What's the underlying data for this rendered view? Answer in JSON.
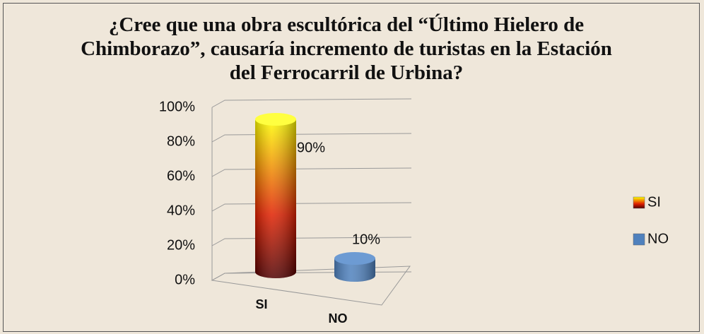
{
  "chart_data": {
    "type": "bar3d",
    "title": "¿Cree que una obra escultórica del “Último Hielero de Chimborazo”, causaría incremento de turistas en la Estación del Ferrocarril de Urbina?",
    "categories": [
      "SI",
      "NO"
    ],
    "values": [
      90,
      10
    ],
    "value_labels": [
      "90%",
      "10%"
    ],
    "colors": [
      "#e02000",
      "#4f81bd"
    ],
    "ylim": [
      0,
      100
    ],
    "yticks": [
      {
        "value": 0,
        "label": "0%"
      },
      {
        "value": 20,
        "label": "20%"
      },
      {
        "value": 40,
        "label": "40%"
      },
      {
        "value": 60,
        "label": "60%"
      },
      {
        "value": 80,
        "label": "80%"
      },
      {
        "value": 100,
        "label": "100%"
      }
    ],
    "grid": true,
    "legend": "right"
  }
}
